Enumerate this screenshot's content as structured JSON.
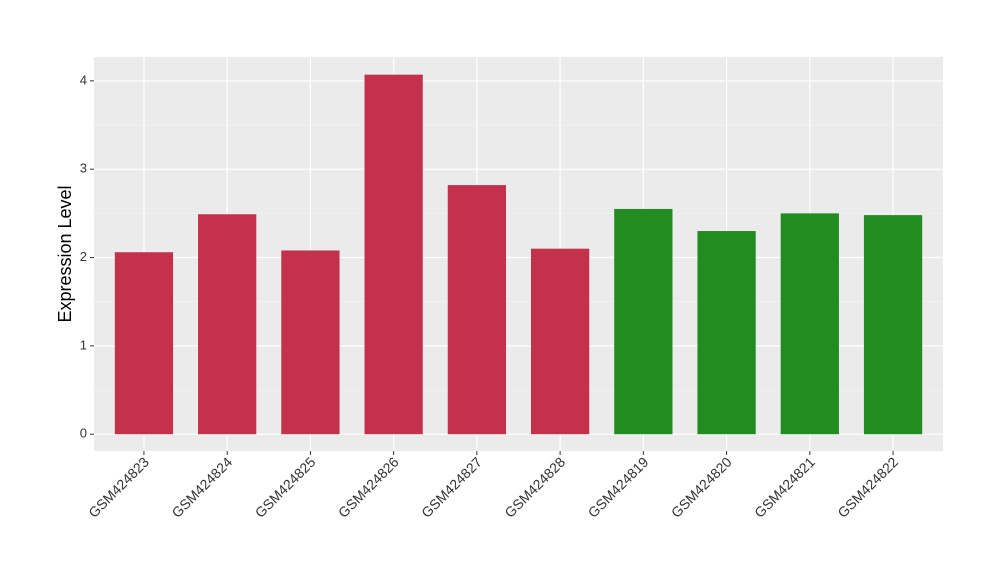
{
  "chart_data": {
    "type": "bar",
    "y_label": "Expression Level",
    "categories": [
      "GSM424823",
      "GSM424824",
      "GSM424825",
      "GSM424826",
      "GSM424827",
      "GSM424828",
      "GSM424819",
      "GSM424820",
      "GSM424821",
      "GSM424822"
    ],
    "values": [
      2.06,
      2.49,
      2.08,
      4.07,
      2.82,
      2.1,
      2.55,
      2.3,
      2.5,
      2.48
    ],
    "colors": [
      "#c3314a",
      "#c3314a",
      "#c3314a",
      "#c3314a",
      "#c3314a",
      "#c3314a",
      "#228b22",
      "#228b22",
      "#228b22",
      "#228b22"
    ],
    "ylim": [
      -0.19,
      4.27
    ],
    "yticks": [
      0,
      1,
      2,
      3,
      4
    ],
    "grid": true
  }
}
